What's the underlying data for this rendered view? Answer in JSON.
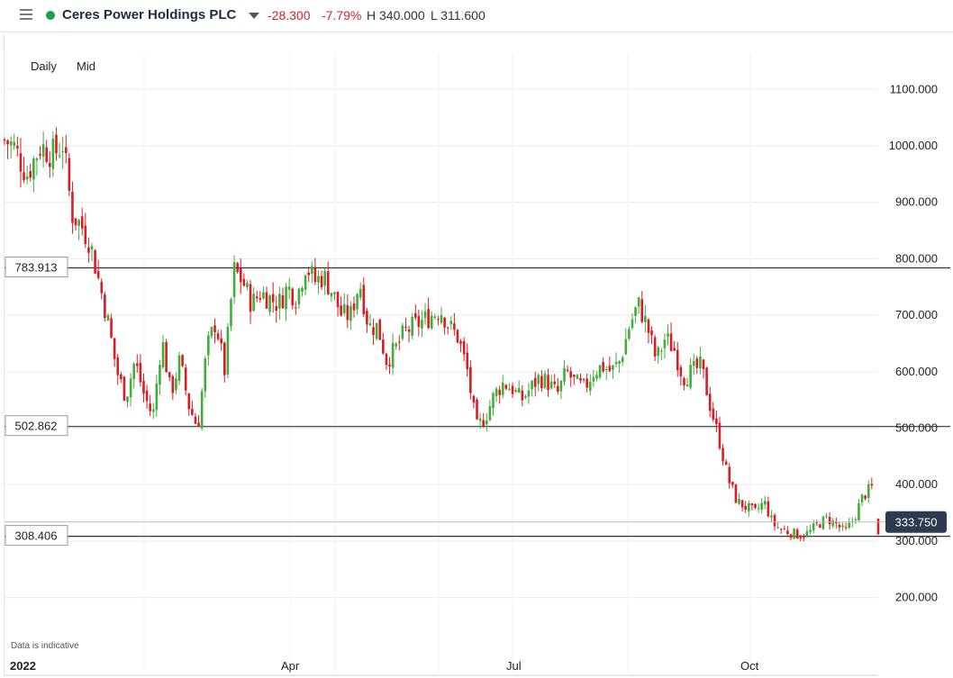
{
  "header": {
    "instrument_name": "Ceres Power Holdings PLC",
    "change": "-28.300",
    "change_percent": "-7.79%",
    "high": "H 340.000",
    "low": "L 311.600",
    "status_color": "#1aa34a"
  },
  "toolbar": {
    "interval_label": "Daily",
    "price_type_label": "Mid"
  },
  "footer": {
    "disclaimer": "Data is indicative"
  },
  "chart_data": {
    "type": "candlestick",
    "x_labels": [
      "2022",
      "Apr",
      "Jul",
      "Oct"
    ],
    "y_ticks": [
      "1100.000",
      "1000.000",
      "900.000",
      "800.000",
      "700.000",
      "600.000",
      "500.000",
      "400.000",
      "300.000",
      "200.000"
    ],
    "ylim": [
      130,
      1180
    ],
    "grid": true,
    "current_price": "333.750",
    "horizontal_lines": [
      {
        "label": "783.913",
        "value": 783.913
      },
      {
        "label": "502.862",
        "value": 502.862
      },
      {
        "label": "308.406",
        "value": 308.406
      }
    ],
    "colors": {
      "up": "#3fae3b",
      "down": "#d81d25",
      "price_tag": "#2e3a4f"
    },
    "series": [
      {
        "segment": 1,
        "points": [
          [
            0,
            1010
          ],
          [
            10,
            1000
          ],
          [
            25,
            950
          ],
          [
            40,
            1000
          ],
          [
            55,
            985
          ],
          [
            65,
            1005
          ],
          [
            75,
            880
          ],
          [
            85,
            860
          ],
          [
            95,
            830
          ],
          [
            105,
            760
          ],
          [
            115,
            690
          ],
          [
            125,
            600
          ],
          [
            135,
            555
          ],
          [
            145,
            620
          ],
          [
            155,
            560
          ],
          [
            165,
            520
          ],
          [
            175,
            660
          ],
          [
            185,
            560
          ],
          [
            195,
            620
          ],
          [
            205,
            540
          ],
          [
            215,
            500
          ],
          [
            225,
            640
          ],
          [
            235,
            690
          ],
          [
            245,
            600
          ],
          [
            255,
            780
          ],
          [
            265,
            760
          ],
          [
            275,
            720
          ],
          [
            285,
            740
          ],
          [
            295,
            730
          ],
          [
            305,
            720
          ],
          [
            315,
            750
          ],
          [
            325,
            730
          ],
          [
            335,
            790
          ],
          [
            345,
            760
          ],
          [
            355,
            770
          ],
          [
            365,
            740
          ],
          [
            375,
            700
          ],
          [
            385,
            700
          ],
          [
            395,
            760
          ],
          [
            405,
            680
          ],
          [
            415,
            680
          ],
          [
            425,
            620
          ],
          [
            435,
            640
          ],
          [
            445,
            670
          ],
          [
            455,
            680
          ],
          [
            465,
            690
          ],
          [
            475,
            700
          ],
          [
            485,
            710
          ],
          [
            495,
            680
          ],
          [
            505,
            660
          ],
          [
            515,
            600
          ],
          [
            525,
            500
          ],
          [
            535,
            520
          ],
          [
            545,
            560
          ],
          [
            555,
            580
          ],
          [
            565,
            570
          ],
          [
            575,
            550
          ],
          [
            585,
            570
          ],
          [
            595,
            590
          ],
          [
            605,
            580
          ],
          [
            615,
            560
          ],
          [
            625,
            600
          ],
          [
            635,
            580
          ],
          [
            645,
            570
          ],
          [
            655,
            600
          ],
          [
            665,
            610
          ],
          [
            675,
            600
          ],
          [
            685,
            620
          ],
          [
            695,
            680
          ],
          [
            705,
            720
          ],
          [
            715,
            680
          ],
          [
            725,
            620
          ],
          [
            735,
            660
          ],
          [
            745,
            640
          ],
          [
            755,
            590
          ],
          [
            765,
            600
          ],
          [
            775,
            610
          ],
          [
            785,
            540
          ],
          [
            795,
            480
          ],
          [
            805,
            410
          ],
          [
            815,
            370
          ],
          [
            825,
            360
          ],
          [
            835,
            350
          ],
          [
            845,
            370
          ],
          [
            855,
            330
          ],
          [
            865,
            320
          ],
          [
            875,
            315
          ],
          [
            885,
            310
          ],
          [
            895,
            315
          ],
          [
            905,
            330
          ],
          [
            915,
            340
          ],
          [
            925,
            330
          ],
          [
            935,
            315
          ],
          [
            945,
            340
          ],
          [
            955,
            380
          ],
          [
            965,
            395
          ]
        ]
      },
      {
        "segment": 2,
        "points": [
          [
            972,
            333.75
          ]
        ]
      }
    ]
  }
}
